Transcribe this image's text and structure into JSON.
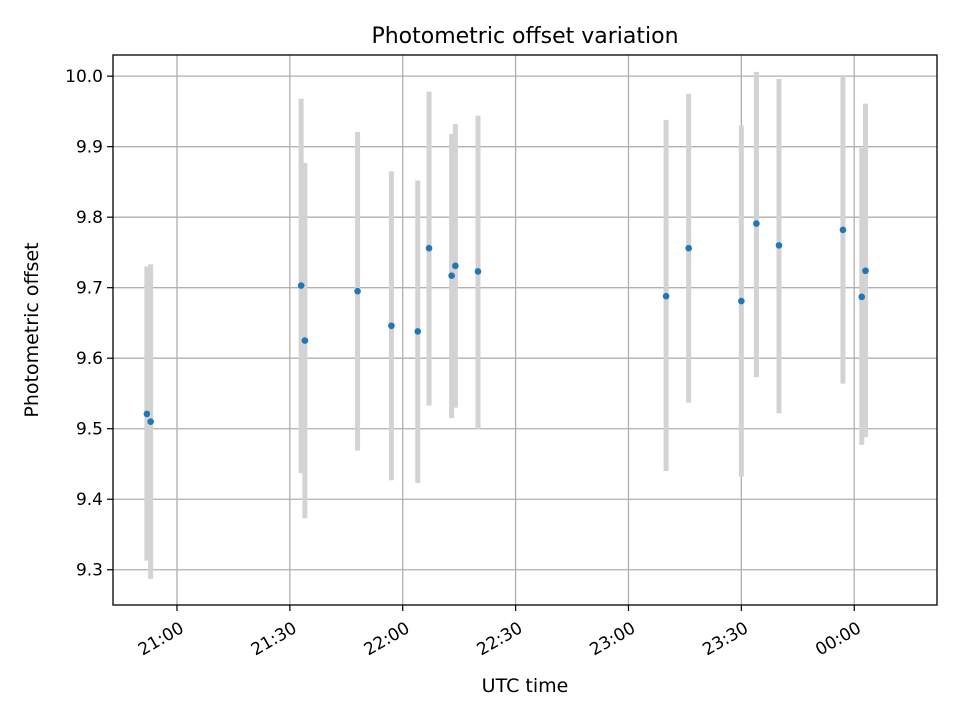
{
  "chart_data": {
    "type": "scatter",
    "title": "Photometric offset variation",
    "xlabel": "UTC time",
    "ylabel": "Photometric offset",
    "x_unit": "time of day (hh:mm), continues past midnight",
    "xlim": [
      "20:43",
      "00:22"
    ],
    "ylim": [
      9.25,
      10.03
    ],
    "x_ticks": [
      "21:00",
      "21:30",
      "22:00",
      "22:30",
      "23:00",
      "23:30",
      "00:00"
    ],
    "y_ticks": [
      "9.3",
      "9.4",
      "9.5",
      "9.6",
      "9.7",
      "9.8",
      "9.9",
      "10.0"
    ],
    "grid": true,
    "colors": {
      "points": "#1f77b4",
      "error_bars": "#d3d3d3",
      "grid": "#b0b0b0"
    },
    "series": [
      {
        "points": [
          {
            "x": "20:52",
            "y": 9.521,
            "ylo": 9.313,
            "yhi": 9.73
          },
          {
            "x": "20:53",
            "y": 9.51,
            "ylo": 9.287,
            "yhi": 9.733
          },
          {
            "x": "21:33",
            "y": 9.703,
            "ylo": 9.437,
            "yhi": 9.968
          },
          {
            "x": "21:34",
            "y": 9.625,
            "ylo": 9.373,
            "yhi": 9.877
          },
          {
            "x": "21:48",
            "y": 9.695,
            "ylo": 9.469,
            "yhi": 9.921
          },
          {
            "x": "21:57",
            "y": 9.646,
            "ylo": 9.427,
            "yhi": 9.865
          },
          {
            "x": "22:04",
            "y": 9.638,
            "ylo": 9.423,
            "yhi": 9.852
          },
          {
            "x": "22:07",
            "y": 9.756,
            "ylo": 9.533,
            "yhi": 9.978
          },
          {
            "x": "22:13",
            "y": 9.717,
            "ylo": 9.515,
            "yhi": 9.918
          },
          {
            "x": "22:14",
            "y": 9.731,
            "ylo": 9.53,
            "yhi": 9.932
          },
          {
            "x": "22:20",
            "y": 9.723,
            "ylo": 9.499,
            "yhi": 9.944
          },
          {
            "x": "23:10",
            "y": 9.688,
            "ylo": 9.44,
            "yhi": 9.938
          },
          {
            "x": "23:16",
            "y": 9.756,
            "ylo": 9.537,
            "yhi": 9.975
          },
          {
            "x": "23:30",
            "y": 9.681,
            "ylo": 9.432,
            "yhi": 9.93
          },
          {
            "x": "23:34",
            "y": 9.791,
            "ylo": 9.573,
            "yhi": 10.006
          },
          {
            "x": "23:40",
            "y": 9.76,
            "ylo": 9.522,
            "yhi": 9.996
          },
          {
            "x": "23:57",
            "y": 9.782,
            "ylo": 9.564,
            "yhi": 10.0
          },
          {
            "x": "00:02",
            "y": 9.687,
            "ylo": 9.477,
            "yhi": 9.898
          },
          {
            "x": "00:03",
            "y": 9.724,
            "ylo": 9.488,
            "yhi": 9.961
          }
        ]
      }
    ]
  }
}
